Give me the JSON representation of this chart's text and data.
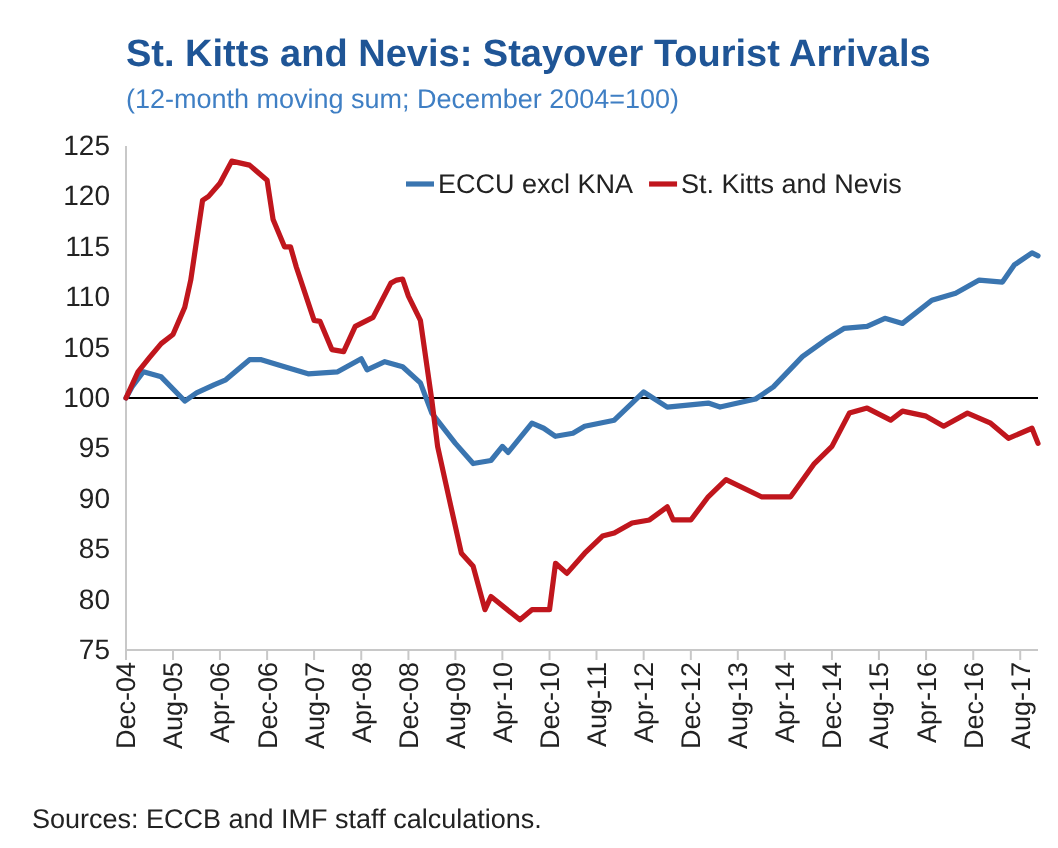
{
  "chart_data": {
    "type": "line",
    "title": "St. Kitts and Nevis: Stayover Tourist Arrivals",
    "subtitle": "(12-month moving sum; December 2004=100)",
    "annotations": [
      "Sources: ECCB and IMF staff calculations."
    ],
    "xlim": [
      "2004-12",
      "2017-11"
    ],
    "xticks": [
      {
        "value": "2004-12",
        "label": "Dec-04"
      },
      {
        "value": "2005-08",
        "label": "Aug-05"
      },
      {
        "value": "2006-04",
        "label": "Apr-06"
      },
      {
        "value": "2006-12",
        "label": "Dec-06"
      },
      {
        "value": "2007-08",
        "label": "Aug-07"
      },
      {
        "value": "2008-04",
        "label": "Apr-08"
      },
      {
        "value": "2008-12",
        "label": "Dec-08"
      },
      {
        "value": "2009-08",
        "label": "Aug-09"
      },
      {
        "value": "2010-04",
        "label": "Apr-10"
      },
      {
        "value": "2010-12",
        "label": "Dec-10"
      },
      {
        "value": "2011-08",
        "label": "Aug-11"
      },
      {
        "value": "2012-04",
        "label": "Apr-12"
      },
      {
        "value": "2012-12",
        "label": "Dec-12"
      },
      {
        "value": "2013-08",
        "label": "Aug-13"
      },
      {
        "value": "2014-04",
        "label": "Apr-14"
      },
      {
        "value": "2014-12",
        "label": "Dec-14"
      },
      {
        "value": "2015-08",
        "label": "Aug-15"
      },
      {
        "value": "2016-04",
        "label": "Apr-16"
      },
      {
        "value": "2016-12",
        "label": "Dec-16"
      },
      {
        "value": "2017-08",
        "label": "Aug-17"
      }
    ],
    "ylim": [
      75,
      125
    ],
    "yticks": [
      75,
      80,
      85,
      90,
      95,
      100,
      105,
      110,
      115,
      120,
      125
    ],
    "grid": false,
    "legend": "top",
    "line_style": "solid",
    "marker": "none",
    "ref_lines": [
      {
        "axis": "y",
        "value": 100,
        "color": "#000000"
      }
    ],
    "series": [
      {
        "name": "ECCU excl KNA",
        "color": "#3a75b0",
        "x": [
          "2004-12",
          "2005-01",
          "2005-03",
          "2005-06",
          "2005-10",
          "2005-12",
          "2006-03",
          "2006-05",
          "2006-09",
          "2006-11",
          "2007-03",
          "2007-07",
          "2007-12",
          "2008-04",
          "2008-05",
          "2008-08",
          "2008-11",
          "2009-02",
          "2009-04",
          "2009-08",
          "2009-11",
          "2010-02",
          "2010-04",
          "2010-05",
          "2010-09",
          "2010-11",
          "2011-01",
          "2011-04",
          "2011-06",
          "2011-11",
          "2012-02",
          "2012-04",
          "2012-08",
          "2013-03",
          "2013-05",
          "2013-11",
          "2014-02",
          "2014-07",
          "2014-11",
          "2015-02",
          "2015-06",
          "2015-09",
          "2015-12",
          "2016-05",
          "2016-09",
          "2017-01",
          "2017-05",
          "2017-07",
          "2017-10",
          "2017-11"
        ],
        "values": [
          100,
          101.1,
          102.6,
          102.1,
          99.7,
          100.5,
          101.3,
          101.8,
          103.8,
          103.8,
          103.1,
          102.4,
          102.6,
          103.9,
          102.8,
          103.6,
          103.1,
          101.5,
          98.5,
          95.5,
          93.5,
          93.8,
          95.2,
          94.6,
          97.5,
          97,
          96.2,
          96.5,
          97.2,
          97.8,
          99.5,
          100.6,
          99.1,
          99.5,
          99.1,
          99.9,
          101.1,
          104.1,
          105.8,
          106.9,
          107.1,
          107.9,
          107.4,
          109.7,
          110.4,
          111.7,
          111.5,
          113.2,
          114.4,
          114.1
        ]
      },
      {
        "name": "St. Kitts and Nevis",
        "color": "#c0161d",
        "x": [
          "2004-12",
          "2005-02",
          "2005-04",
          "2005-06",
          "2005-08",
          "2005-10",
          "2005-11",
          "2006-01",
          "2006-02",
          "2006-04",
          "2006-06",
          "2006-09",
          "2006-12",
          "2007-01",
          "2007-03",
          "2007-04",
          "2007-05",
          "2007-08",
          "2007-09",
          "2007-11",
          "2008-01",
          "2008-03",
          "2008-06",
          "2008-09",
          "2008-10",
          "2008-11",
          "2008-12",
          "2009-02",
          "2009-04",
          "2009-05",
          "2009-07",
          "2009-09",
          "2009-11",
          "2010-01",
          "2010-02",
          "2010-07",
          "2010-09",
          "2010-12",
          "2011-01",
          "2011-03",
          "2011-06",
          "2011-09",
          "2011-11",
          "2012-02",
          "2012-05",
          "2012-08",
          "2012-09",
          "2012-12",
          "2013-03",
          "2013-06",
          "2013-12",
          "2014-05",
          "2014-09",
          "2014-12",
          "2015-03",
          "2015-06",
          "2015-10",
          "2015-12",
          "2016-04",
          "2016-07",
          "2016-11",
          "2017-03",
          "2017-06",
          "2017-10",
          "2017-11"
        ],
        "values": [
          100,
          102.6,
          104,
          105.4,
          106.3,
          109,
          111.7,
          119.6,
          120,
          121.3,
          123.5,
          123.1,
          121.6,
          117.7,
          115,
          115,
          113,
          107.7,
          107.6,
          104.8,
          104.6,
          107.1,
          108,
          111.4,
          111.7,
          111.8,
          110.1,
          107.7,
          99.8,
          95.2,
          89.9,
          84.6,
          83.3,
          79,
          80.3,
          78,
          79,
          79,
          83.6,
          82.6,
          84.6,
          86.3,
          86.6,
          87.6,
          87.9,
          89.2,
          87.9,
          87.9,
          90.2,
          91.9,
          90.2,
          90.2,
          93.5,
          95.2,
          98.5,
          99,
          97.8,
          98.7,
          98.2,
          97.2,
          98.5,
          97.5,
          96,
          97,
          95.5
        ]
      }
    ]
  }
}
